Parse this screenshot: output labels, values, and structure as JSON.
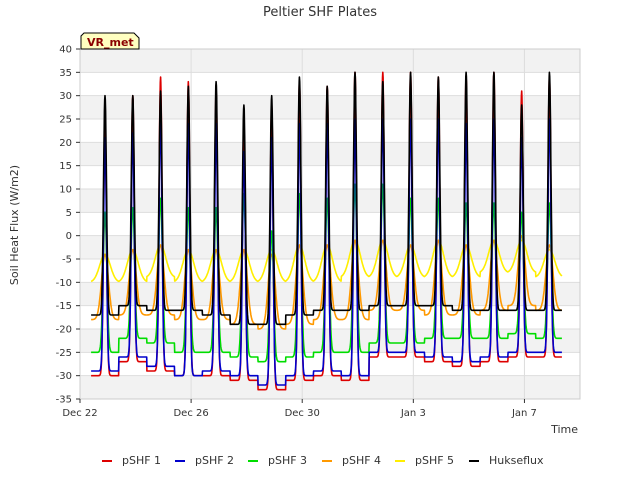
{
  "chart_data": {
    "type": "line",
    "title": "Peltier SHF Plates",
    "xlabel": "Time",
    "ylabel": "Soil Heat Flux (W/m2)",
    "badge": "VR_met",
    "xlim": [
      0,
      18
    ],
    "ylim": [
      -35,
      40
    ],
    "yticks": [
      -35,
      -30,
      -25,
      -20,
      -15,
      -10,
      -5,
      0,
      5,
      10,
      15,
      20,
      25,
      30,
      35,
      40
    ],
    "xticks": [
      {
        "value": 0,
        "label": "Dec 22"
      },
      {
        "value": 4,
        "label": "Dec 26"
      },
      {
        "value": 8,
        "label": "Dec 30"
      },
      {
        "value": 12,
        "label": "Jan 3"
      },
      {
        "value": 16,
        "label": "Jan 7"
      }
    ],
    "grid": true,
    "legend_position": "bottom",
    "day_start": 0.4,
    "num_days": 17,
    "series": [
      {
        "name": "pSHF 1",
        "color": "#dd0000",
        "peaks": [
          26,
          30,
          34,
          33,
          31,
          23,
          28,
          33,
          32,
          35,
          35,
          35,
          34,
          34,
          35,
          31,
          34
        ],
        "troughs": [
          -30,
          -27,
          -29,
          -30,
          -30,
          -31,
          -33,
          -31,
          -30,
          -31,
          -26,
          -26,
          -27,
          -28,
          -27,
          -26,
          -26
        ],
        "width": 0.11
      },
      {
        "name": "pSHF 2",
        "color": "#0000cc",
        "peaks": [
          21,
          22,
          25,
          24,
          24,
          18,
          21,
          24,
          24,
          25,
          25,
          25,
          25,
          24,
          25,
          21,
          25
        ],
        "troughs": [
          -29,
          -26,
          -28,
          -30,
          -29,
          -30,
          -32,
          -30,
          -29,
          -30,
          -25,
          -25,
          -26,
          -27,
          -26,
          -25,
          -25
        ],
        "width": 0.11
      },
      {
        "name": "pSHF 3",
        "color": "#00dd00",
        "peaks": [
          5,
          6,
          8,
          6,
          6,
          9,
          1,
          9,
          8,
          11,
          11,
          8,
          8,
          7,
          7,
          5,
          7
        ],
        "troughs": [
          -25,
          -22,
          -23,
          -25,
          -25,
          -26,
          -27,
          -26,
          -25,
          -25,
          -23,
          -23,
          -22,
          -22,
          -22,
          -21,
          -22
        ],
        "width": 0.14
      },
      {
        "name": "pSHF 4",
        "color": "#ff9900",
        "peaks": [
          -4,
          -3,
          -2,
          -3,
          -3,
          -3,
          -4,
          -2,
          -2,
          -1,
          -1,
          -2,
          -1,
          -2,
          -1,
          0,
          -2
        ],
        "troughs": [
          -18,
          -17,
          -17,
          -18,
          -18,
          -19,
          -20,
          -19,
          -18,
          -18,
          -16,
          -16,
          -17,
          -17,
          -16,
          -15,
          -16
        ],
        "width": 0.26
      },
      {
        "name": "pSHF 5",
        "color": "#ffee00",
        "peaks": [
          -4,
          -3,
          -2,
          -3,
          -3,
          -3,
          -3,
          -2,
          -2,
          -1,
          -1,
          -2,
          -1,
          -2,
          -1,
          -1,
          -3
        ],
        "troughs": [
          -10,
          -10,
          -9,
          -10,
          -10,
          -10,
          -10,
          -10,
          -10,
          -9,
          -9,
          -9,
          -9,
          -9,
          -8,
          -8,
          -9
        ],
        "width": 0.4
      },
      {
        "name": "Hukseflux",
        "color": "#000000",
        "peaks": [
          30,
          30,
          31,
          32,
          33,
          28,
          30,
          34,
          32,
          35,
          33,
          35,
          34,
          35,
          35,
          28,
          35
        ],
        "troughs": [
          -17,
          -15,
          -16,
          -16,
          -17,
          -19,
          -19,
          -17,
          -16,
          -16,
          -15,
          -15,
          -15,
          -16,
          -16,
          -16,
          -16
        ],
        "width": 0.11
      }
    ]
  }
}
